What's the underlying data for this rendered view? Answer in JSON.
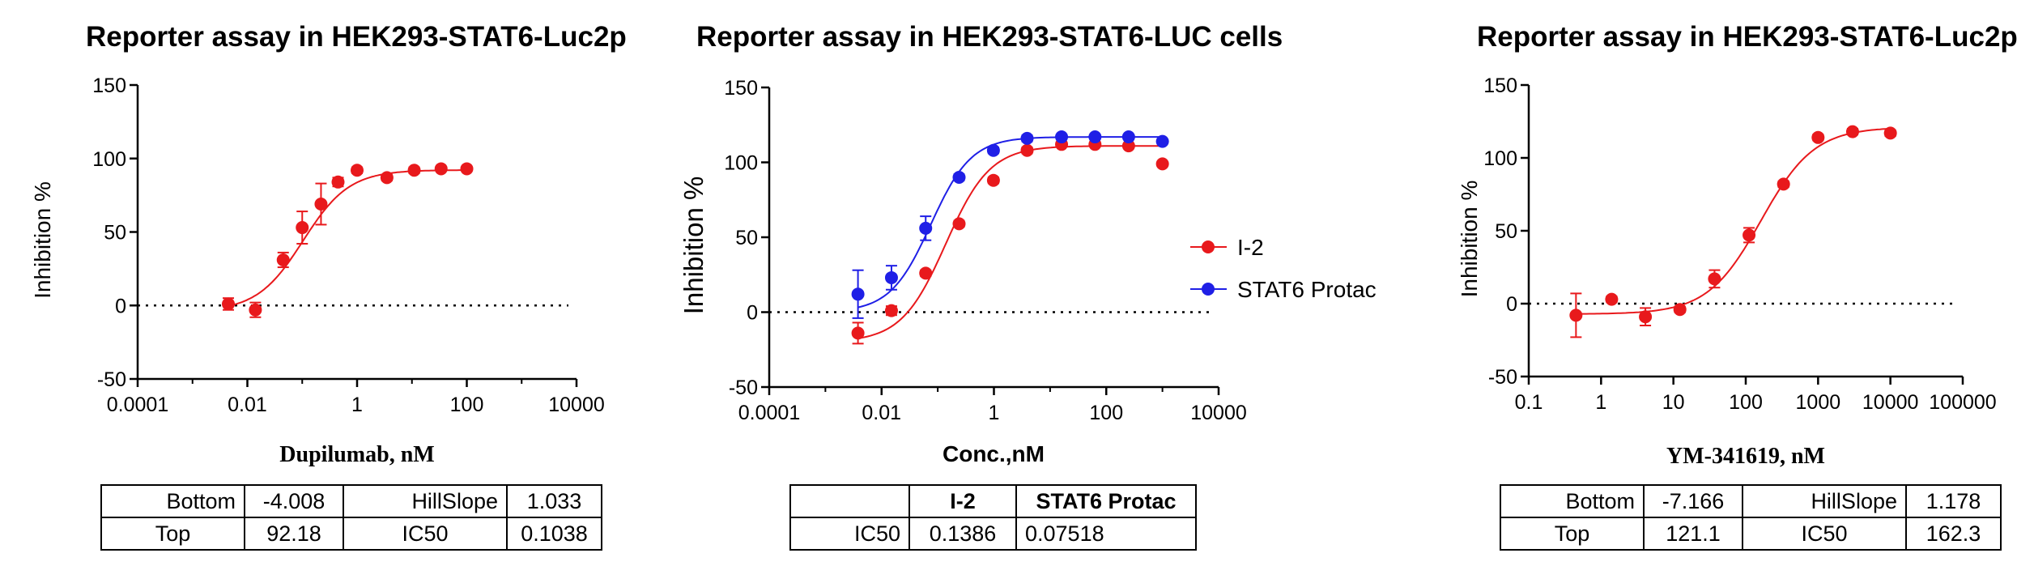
{
  "colors": {
    "red": "#e8191c",
    "blue": "#1f1fe6",
    "axis": "#000000"
  },
  "chart_data": [
    {
      "type": "scatter",
      "title": "Reporter assay in HEK293-STAT6-Luc2p",
      "xlabel": "Dupilumab, nM",
      "ylabel": "Inhibition %",
      "xscale": "log",
      "xlim": [
        0.0001,
        10000
      ],
      "ylim": [
        -50,
        150
      ],
      "xticks": [
        "0.0001",
        "0.01",
        "1",
        "100",
        "10000"
      ],
      "yticks": [
        "150",
        "100",
        "50",
        "0",
        "-50"
      ],
      "series": [
        {
          "color": "#e8191c",
          "x": [
            0.0045,
            0.014,
            0.045,
            0.1,
            0.22,
            0.45,
            1.0,
            3.5,
            11,
            34,
            100
          ],
          "y": [
            1,
            -3,
            31,
            53,
            69,
            84,
            92,
            87,
            92,
            93,
            93
          ],
          "err": [
            4,
            5,
            5,
            11,
            14,
            3,
            2,
            2,
            2,
            1,
            1
          ],
          "fit": {
            "bottom": -4.008,
            "top": 92.18,
            "ic50": 0.1038,
            "hill": 1.033
          }
        }
      ],
      "table": {
        "rows": [
          [
            "Bottom",
            "-4.008",
            "HillSlope",
            "1.033"
          ],
          [
            "Top",
            "92.18",
            "IC50",
            "0.1038"
          ]
        ]
      }
    },
    {
      "type": "scatter",
      "title": "Reporter assay in HEK293-STAT6-LUC cells",
      "xlabel": "Conc.,nM",
      "ylabel": "Inhibition %",
      "xscale": "log",
      "xlim": [
        0.0001,
        10000
      ],
      "ylim": [
        -50,
        150
      ],
      "xticks": [
        "0.0001",
        "0.01",
        "1",
        "100",
        "10000"
      ],
      "yticks": [
        "150",
        "100",
        "50",
        "0",
        "-50"
      ],
      "legend_position": "right",
      "series": [
        {
          "name": "I-2",
          "color": "#e8191c",
          "x": [
            0.0038,
            0.015,
            0.061,
            0.24,
            0.98,
            3.9,
            16,
            63,
            250,
            1000
          ],
          "y": [
            -14,
            1,
            26,
            59,
            88,
            108,
            112,
            112,
            111,
            99
          ],
          "err": [
            7,
            3,
            2,
            2,
            2,
            2,
            1,
            1,
            1,
            1
          ],
          "fit": {
            "bottom": -20,
            "top": 111,
            "ic50": 0.1386,
            "hill": 1.1
          }
        },
        {
          "name": "STAT6 Protac",
          "color": "#1f1fe6",
          "x": [
            0.0038,
            0.015,
            0.061,
            0.24,
            0.98,
            3.9,
            16,
            63,
            250,
            1000
          ],
          "y": [
            12,
            23,
            56,
            90,
            108,
            116,
            117,
            117,
            117,
            114
          ],
          "err": [
            16,
            8,
            8,
            2,
            2,
            2,
            1,
            1,
            1,
            1
          ],
          "fit": {
            "bottom": 0,
            "top": 117,
            "ic50": 0.07518,
            "hill": 1.2
          }
        }
      ],
      "table": {
        "header": [
          "",
          "I-2",
          "STAT6 Protac"
        ],
        "rows": [
          [
            "IC50",
            "0.1386",
            "0.07518"
          ]
        ]
      }
    },
    {
      "type": "scatter",
      "title": "Reporter assay in HEK293-STAT6-Luc2p",
      "xlabel": "YM-341619, nM",
      "ylabel": "Inhibition %",
      "xscale": "log",
      "xlim": [
        0.1,
        100000
      ],
      "ylim": [
        -50,
        150
      ],
      "xticks": [
        "0.1",
        "1",
        "10",
        "100",
        "1000",
        "10000",
        "100000"
      ],
      "yticks": [
        "150",
        "100",
        "50",
        "0",
        "-50"
      ],
      "series": [
        {
          "color": "#e8191c",
          "x": [
            0.45,
            1.4,
            4.1,
            12.3,
            37,
            111,
            333,
            1000,
            3000,
            10000
          ],
          "y": [
            -8,
            3,
            -9,
            -4,
            17,
            47,
            82,
            114,
            118,
            117
          ],
          "err": [
            15,
            2,
            6,
            2,
            6,
            5,
            2,
            2,
            2,
            2
          ],
          "fit": {
            "bottom": -7.166,
            "top": 121.1,
            "ic50": 162.3,
            "hill": 1.178
          }
        }
      ],
      "table": {
        "rows": [
          [
            "Bottom",
            "-7.166",
            "HillSlope",
            "1.178"
          ],
          [
            "Top",
            "121.1",
            "IC50",
            "162.3"
          ]
        ]
      }
    }
  ]
}
